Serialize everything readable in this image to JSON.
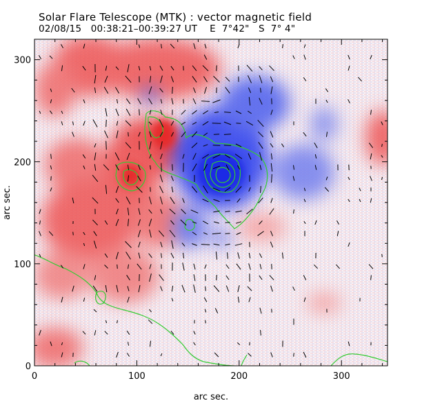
{
  "header": {
    "title": "Solar Flare Telescope (MTK) : vector magnetic field",
    "date_time": "02/08/15   00:38:21–00:39:27 UT",
    "position_e": "E  7°42\"",
    "position_s": "S  7° 4\""
  },
  "axes": {
    "xlabel": "arc sec.",
    "ylabel": "arc sec.",
    "x_range": [
      0,
      345
    ],
    "y_range": [
      0,
      320
    ],
    "x_ticks": [
      0,
      100,
      200,
      300
    ],
    "y_ticks": [
      0,
      100,
      200,
      300
    ]
  },
  "colors": {
    "positive_polarity": "#ee3333",
    "negative_polarity": "#2233ee",
    "contour": "#33cc33",
    "vector": "#000000"
  }
}
